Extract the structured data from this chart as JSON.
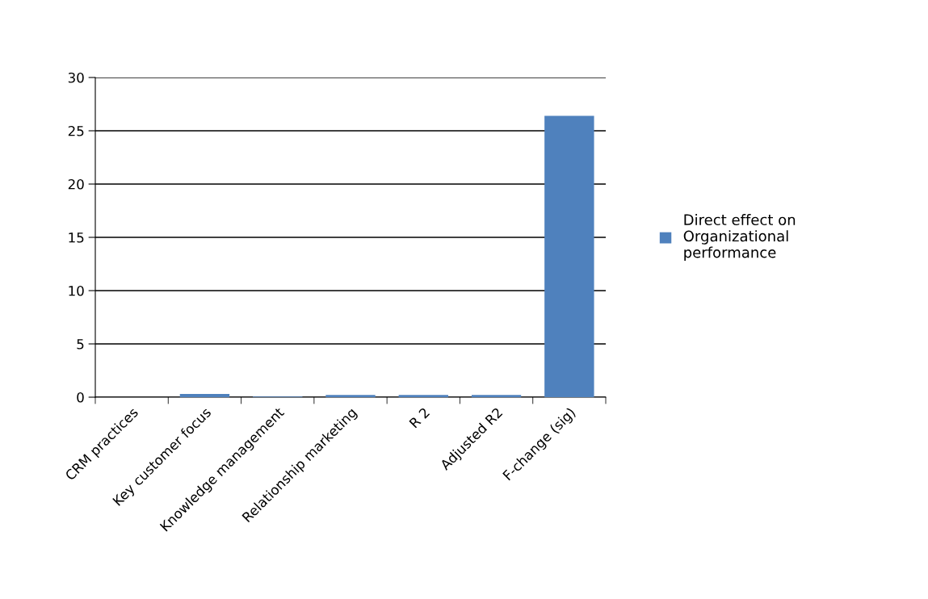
{
  "chart_data": {
    "type": "bar",
    "categories": [
      "CRM practices",
      "Key customer focus",
      "Knowledge management",
      "Relationship marketing",
      "R 2",
      "Adjusted R2",
      "F-change (sig)"
    ],
    "series": [
      {
        "name": "Direct effect on Organizational performance",
        "color": "#4f81bd",
        "values": [
          null,
          0.3,
          0.05,
          0.2,
          0.2,
          0.2,
          26.4
        ]
      }
    ],
    "ylim": [
      0,
      30
    ],
    "yticks": [
      0,
      5,
      10,
      15,
      20,
      25,
      30
    ],
    "grid": "y",
    "legend": "right"
  }
}
